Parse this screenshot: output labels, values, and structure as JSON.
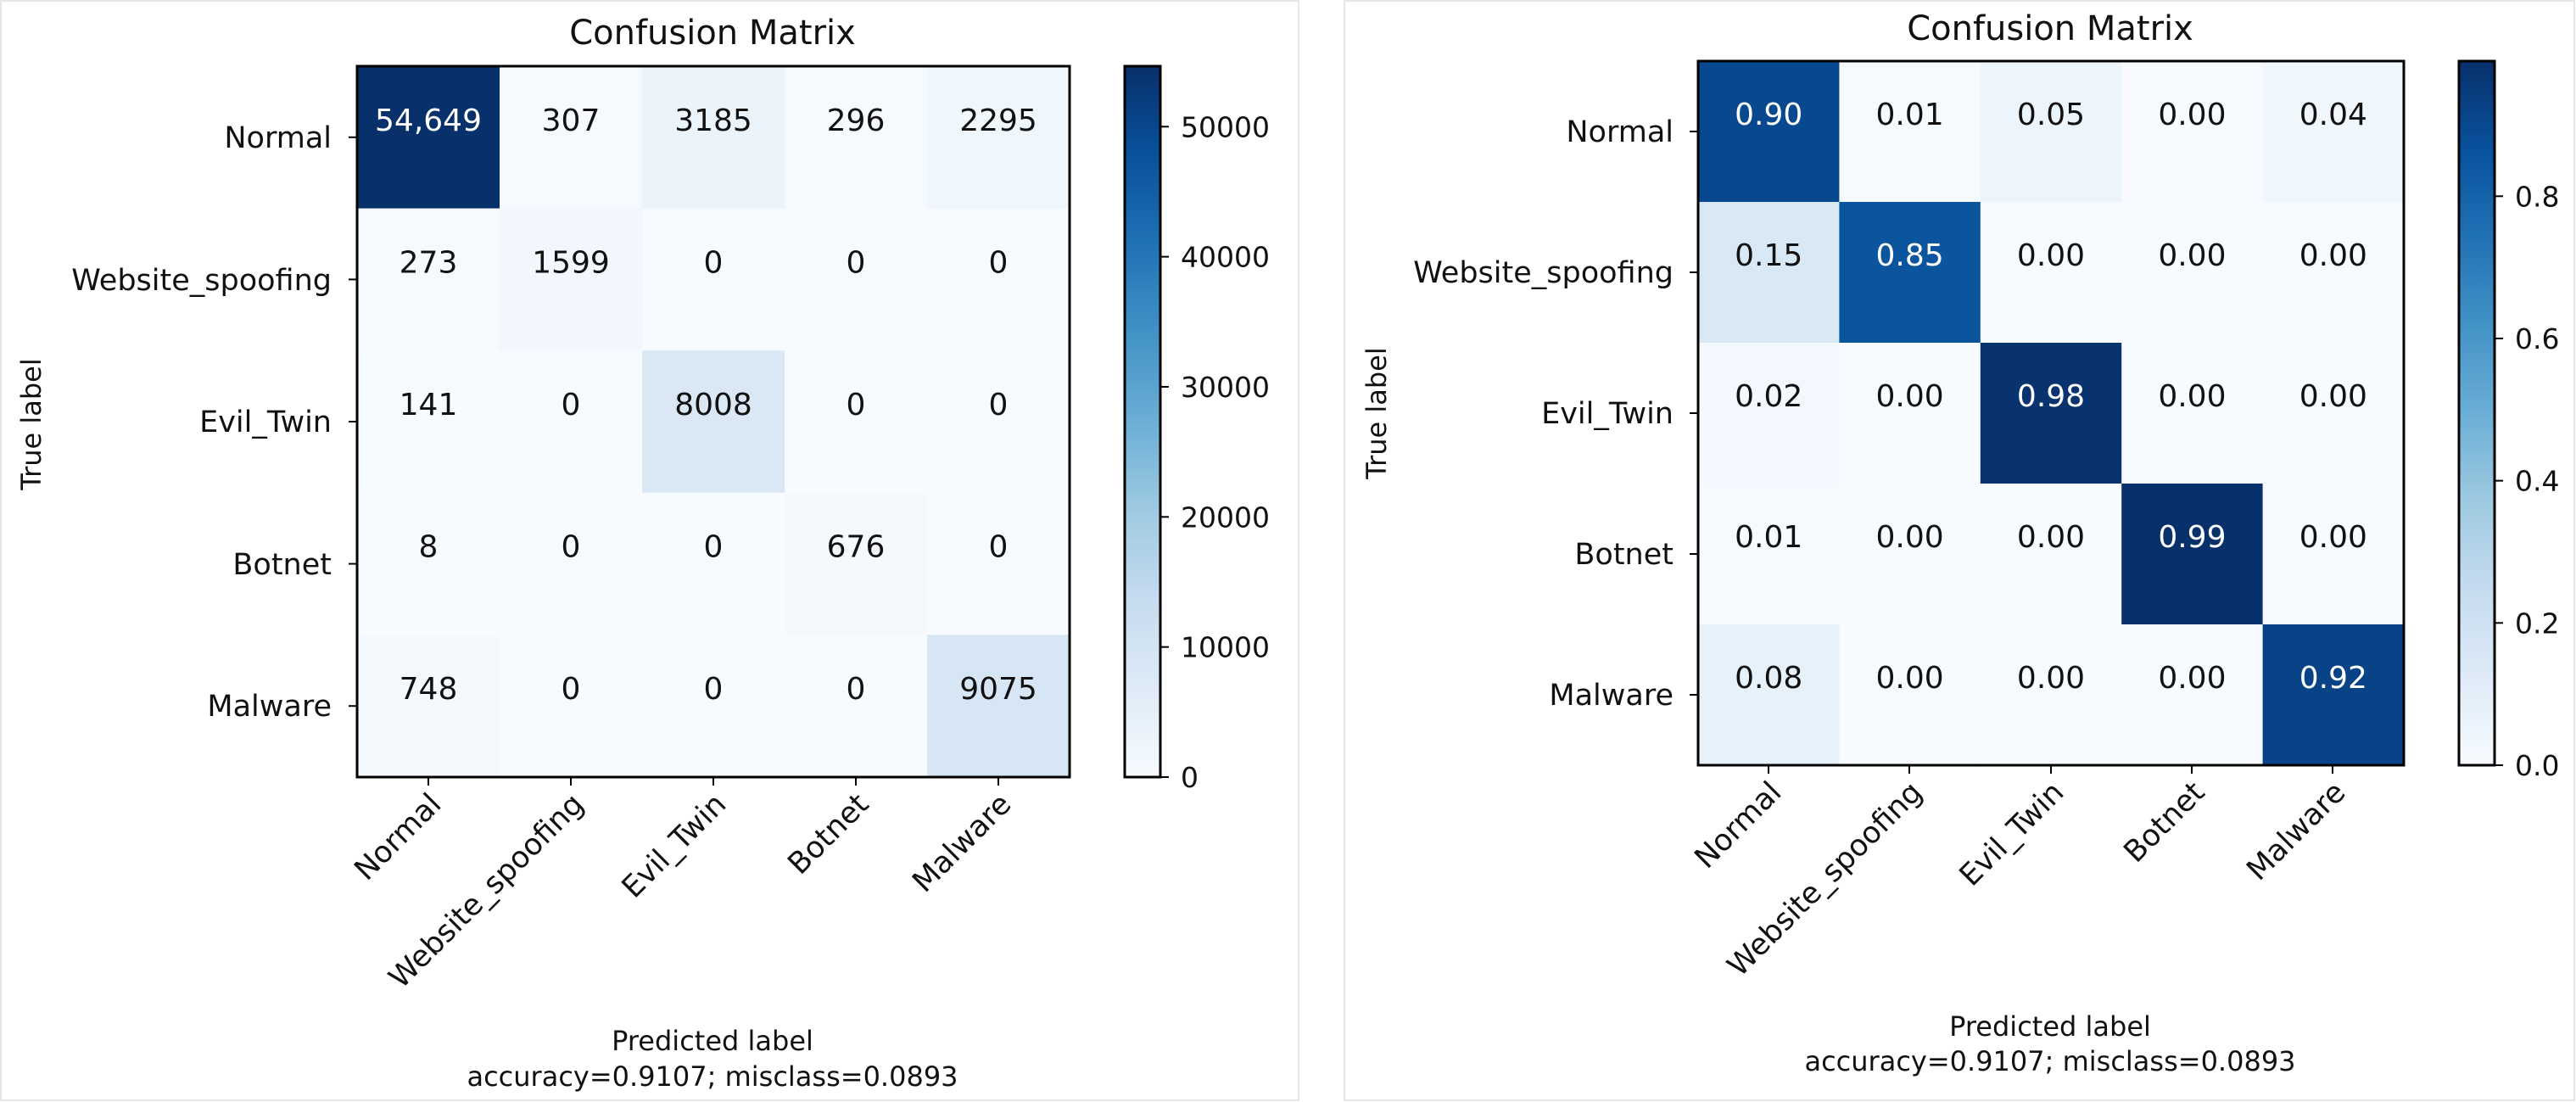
{
  "chart_data": [
    {
      "type": "heatmap",
      "title": "Confusion Matrix",
      "xlabel": "Predicted label",
      "ylabel": "True label",
      "footer": "accuracy=0.9107; misclass=0.0893",
      "x_categories": [
        "Normal",
        "Website_spoofing",
        "Evil_Twin",
        "Botnet",
        "Malware"
      ],
      "y_categories": [
        "Normal",
        "Website_spoofing",
        "Evil_Twin",
        "Botnet",
        "Malware"
      ],
      "values": [
        [
          54649,
          307,
          3185,
          296,
          2295
        ],
        [
          273,
          1599,
          0,
          0,
          0
        ],
        [
          141,
          0,
          8008,
          0,
          0
        ],
        [
          8,
          0,
          0,
          676,
          0
        ],
        [
          748,
          0,
          0,
          0,
          9075
        ]
      ],
      "cell_labels": [
        [
          "54,649",
          "307",
          "3185",
          "296",
          "2295"
        ],
        [
          "273",
          "1599",
          "0",
          "0",
          "0"
        ],
        [
          "141",
          "0",
          "8008",
          "0",
          "0"
        ],
        [
          "8",
          "0",
          "0",
          "676",
          "0"
        ],
        [
          "748",
          "0",
          "0",
          "0",
          "9075"
        ]
      ],
      "colormap": "Blues",
      "vmin": 0,
      "vmax": 54649,
      "colorbar_ticks": [
        0,
        10000,
        20000,
        30000,
        40000,
        50000
      ],
      "colorbar_tick_labels": [
        "0",
        "10000",
        "20000",
        "30000",
        "40000",
        "50000"
      ]
    },
    {
      "type": "heatmap",
      "title": "Confusion Matrix",
      "xlabel": "Predicted label",
      "ylabel": "True label",
      "footer": "accuracy=0.9107; misclass=0.0893",
      "x_categories": [
        "Normal",
        "Website_spoofing",
        "Evil_Twin",
        "Botnet",
        "Malware"
      ],
      "y_categories": [
        "Normal",
        "Website_spoofing",
        "Evil_Twin",
        "Botnet",
        "Malware"
      ],
      "values": [
        [
          0.9,
          0.01,
          0.05,
          0.0,
          0.04
        ],
        [
          0.15,
          0.85,
          0.0,
          0.0,
          0.0
        ],
        [
          0.02,
          0.0,
          0.98,
          0.0,
          0.0
        ],
        [
          0.01,
          0.0,
          0.0,
          0.99,
          0.0
        ],
        [
          0.08,
          0.0,
          0.0,
          0.0,
          0.92
        ]
      ],
      "cell_labels": [
        [
          "0.90",
          "0.01",
          "0.05",
          "0.00",
          "0.04"
        ],
        [
          "0.15",
          "0.85",
          "0.00",
          "0.00",
          "0.00"
        ],
        [
          "0.02",
          "0.00",
          "0.98",
          "0.00",
          "0.00"
        ],
        [
          "0.01",
          "0.00",
          "0.00",
          "0.99",
          "0.00"
        ],
        [
          "0.08",
          "0.00",
          "0.00",
          "0.00",
          "0.92"
        ]
      ],
      "colormap": "Blues",
      "vmin": 0,
      "vmax": 0.99,
      "colorbar_ticks": [
        0.0,
        0.2,
        0.4,
        0.6,
        0.8
      ],
      "colorbar_tick_labels": [
        "0.0",
        "0.2",
        "0.4",
        "0.6",
        "0.8"
      ]
    }
  ]
}
